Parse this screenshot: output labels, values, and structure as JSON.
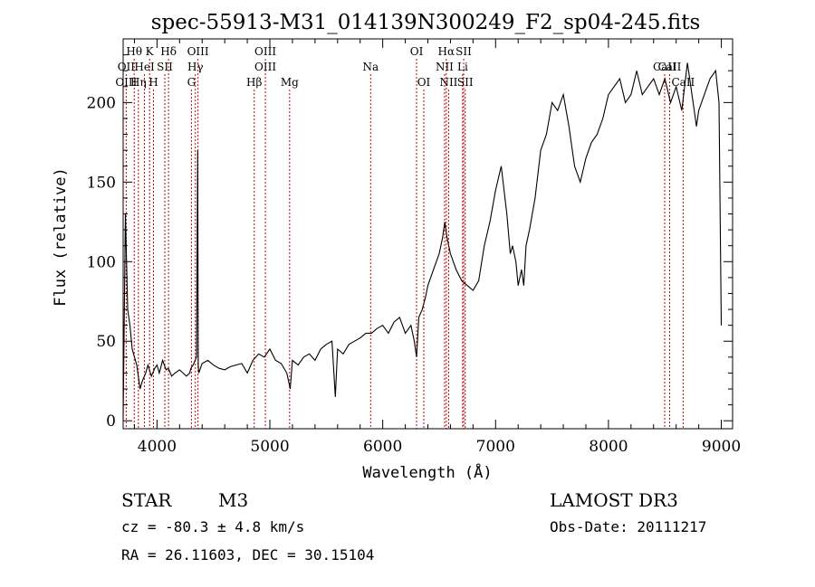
{
  "chart_data": {
    "type": "line",
    "title": "spec-55913-M31_014139N300249_F2_sp04-245.fits",
    "xlabel": "Wavelength (Å)",
    "ylabel": "Flux (relative)",
    "xlim": [
      3700,
      9100
    ],
    "ylim": [
      -5,
      240
    ],
    "xticks": [
      4000,
      5000,
      6000,
      7000,
      8000,
      9000
    ],
    "yticks": [
      0,
      50,
      100,
      150,
      200
    ],
    "series": [
      {
        "name": "spectrum",
        "color": "#000000",
        "x": [
          3700,
          3720,
          3740,
          3760,
          3780,
          3800,
          3820,
          3850,
          3870,
          3900,
          3920,
          3950,
          3980,
          4000,
          4020,
          4050,
          4080,
          4100,
          4130,
          4160,
          4200,
          4230,
          4260,
          4290,
          4300,
          4320,
          4350,
          4360,
          4365,
          4370,
          4380,
          4400,
          4450,
          4500,
          4550,
          4600,
          4650,
          4700,
          4750,
          4800,
          4850,
          4900,
          4950,
          5000,
          5050,
          5100,
          5150,
          5180,
          5200,
          5250,
          5300,
          5350,
          5400,
          5450,
          5500,
          5550,
          5580,
          5600,
          5650,
          5700,
          5750,
          5800,
          5850,
          5900,
          5950,
          6000,
          6050,
          6100,
          6150,
          6200,
          6250,
          6280,
          6300,
          6320,
          6350,
          6380,
          6400,
          6450,
          6500,
          6530,
          6550,
          6570,
          6600,
          6650,
          6700,
          6750,
          6800,
          6850,
          6900,
          6950,
          7000,
          7050,
          7100,
          7130,
          7150,
          7180,
          7200,
          7230,
          7250,
          7270,
          7300,
          7350,
          7400,
          7450,
          7500,
          7550,
          7600,
          7650,
          7700,
          7750,
          7800,
          7850,
          7900,
          7950,
          8000,
          8050,
          8100,
          8150,
          8200,
          8250,
          8300,
          8350,
          8400,
          8450,
          8500,
          8550,
          8600,
          8650,
          8700,
          8750,
          8780,
          8800,
          8850,
          8900,
          8950,
          8980,
          9000
        ],
        "values": [
          2,
          130,
          70,
          60,
          45,
          40,
          35,
          20,
          25,
          30,
          35,
          28,
          33,
          35,
          30,
          38,
          32,
          33,
          28,
          30,
          32,
          30,
          28,
          30,
          33,
          35,
          40,
          170,
          35,
          30,
          32,
          36,
          38,
          35,
          33,
          32,
          34,
          35,
          36,
          30,
          38,
          42,
          40,
          45,
          38,
          36,
          30,
          20,
          38,
          35,
          40,
          42,
          38,
          45,
          48,
          50,
          15,
          45,
          42,
          48,
          50,
          52,
          55,
          55,
          58,
          60,
          55,
          62,
          65,
          55,
          60,
          50,
          40,
          65,
          70,
          78,
          85,
          95,
          105,
          115,
          125,
          115,
          105,
          95,
          88,
          85,
          82,
          88,
          110,
          125,
          145,
          160,
          130,
          105,
          110,
          100,
          85,
          95,
          85,
          110,
          120,
          140,
          170,
          180,
          200,
          195,
          205,
          185,
          160,
          150,
          165,
          175,
          180,
          190,
          205,
          210,
          215,
          200,
          205,
          220,
          205,
          210,
          215,
          205,
          215,
          200,
          210,
          195,
          225,
          200,
          185,
          195,
          205,
          215,
          220,
          200,
          60
        ]
      }
    ],
    "line_markers": [
      {
        "label": "Hθ",
        "row": 1,
        "x": 3798
      },
      {
        "label": "K",
        "row": 1,
        "x": 3934
      },
      {
        "label": "Hδ",
        "row": 1,
        "x": 4102
      },
      {
        "label": "OIII",
        "row": 1,
        "x": 4363
      },
      {
        "label": "OIII",
        "row": 1,
        "x": 4960
      },
      {
        "label": "OI",
        "row": 1,
        "x": 6300
      },
      {
        "label": "Hα",
        "row": 1,
        "x": 6563
      },
      {
        "label": "SII",
        "row": 1,
        "x": 6717
      },
      {
        "label": "CaII",
        "row": 2,
        "x": 8498
      },
      {
        "label": "OII",
        "row": 2,
        "x": 3727
      },
      {
        "label": "HeI",
        "row": 2,
        "x": 3889
      },
      {
        "label": "SII",
        "row": 2,
        "x": 4069
      },
      {
        "label": "Hγ",
        "row": 2,
        "x": 4340
      },
      {
        "label": "OIII",
        "row": 2,
        "x": 4960
      },
      {
        "label": "Na",
        "row": 2,
        "x": 5893
      },
      {
        "label": "NII",
        "row": 2,
        "x": 6548
      },
      {
        "label": "Li",
        "row": 2,
        "x": 6708
      },
      {
        "label": "CaII",
        "row": 2,
        "x": 8542
      },
      {
        "label": "OIII",
        "row": 3,
        "x": 3727
      },
      {
        "label": "Hη",
        "row": 3,
        "x": 3835
      },
      {
        "label": "H",
        "row": 3,
        "x": 3969
      },
      {
        "label": "G",
        "row": 3,
        "x": 4305
      },
      {
        "label": "Hβ",
        "row": 3,
        "x": 4861
      },
      {
        "label": "Mg",
        "row": 3,
        "x": 5175
      },
      {
        "label": "OI",
        "row": 3,
        "x": 6364
      },
      {
        "label": "NII",
        "row": 3,
        "x": 6584
      },
      {
        "label": "SII",
        "row": 3,
        "x": 6731
      },
      {
        "label": "CaII",
        "row": 3,
        "x": 8662
      }
    ],
    "marker_color": "#cc0000",
    "grid": false
  },
  "info": {
    "object_type": "STAR",
    "subclass": "M3",
    "survey": "LAMOST DR3",
    "cz": "cz = -80.3 ± 4.8 km/s",
    "obs_date": "Obs-Date: 20111217",
    "coords": "RA =  26.11603, DEC =  30.15104"
  }
}
